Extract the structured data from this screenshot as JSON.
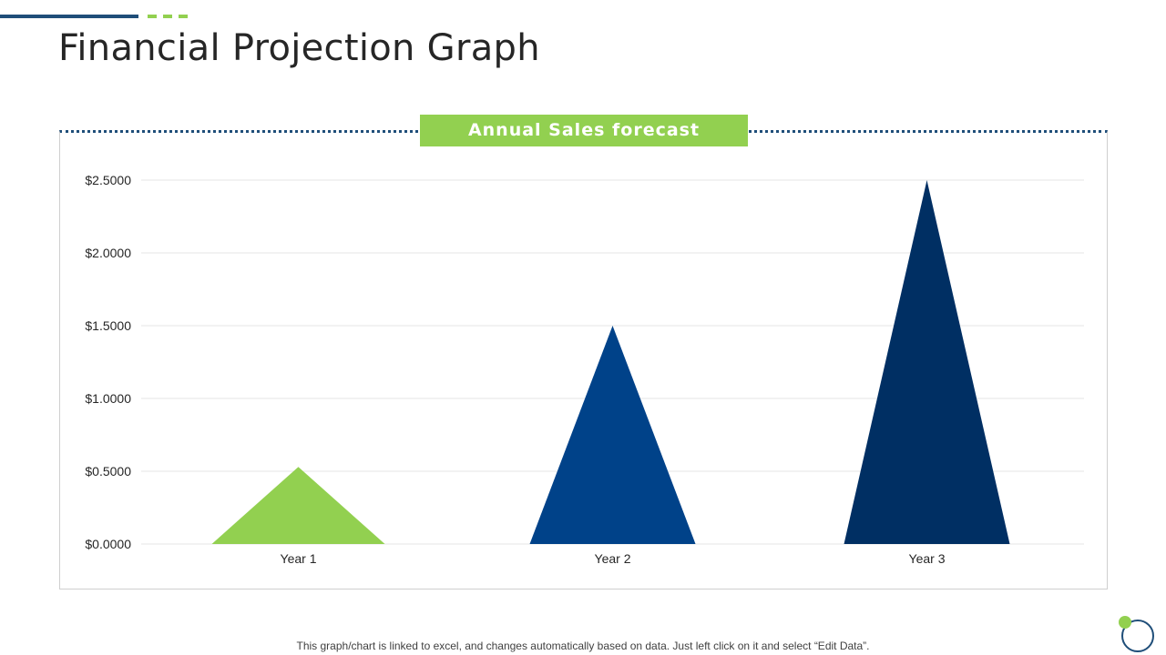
{
  "page": {
    "title": "Financial Projection Graph",
    "footer_note": "This graph/chart is linked to excel,  and changes automatically based on data. Just left click on it and select “Edit Data”."
  },
  "colors": {
    "accent_green": "#92d050",
    "accent_blue": "#1f4e79",
    "series_year1": "#92d050",
    "series_year2": "#004289",
    "series_year3": "#002f63"
  },
  "chart_data": {
    "type": "bar",
    "mark_shape": "triangle",
    "title": "Annual Sales forecast",
    "categories": [
      "Year 1",
      "Year 2",
      "Year 3"
    ],
    "values": [
      0.53,
      1.5,
      2.5
    ],
    "colors": [
      "#92d050",
      "#004289",
      "#002f63"
    ],
    "ylim": [
      0,
      2.5
    ],
    "yticks": [
      0,
      0.5,
      1.0,
      1.5,
      2.0,
      2.5
    ],
    "ytick_labels": [
      "$0.0000",
      "$0.5000",
      "$1.0000",
      "$1.5000",
      "$2.0000",
      "$2.5000"
    ],
    "grid": true,
    "xlabel": "",
    "ylabel": "",
    "legend": "none"
  }
}
